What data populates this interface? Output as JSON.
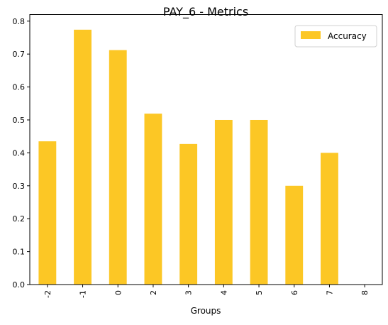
{
  "chart_data": {
    "type": "bar",
    "title": "PAY_6 - Metrics",
    "xlabel": "Groups",
    "ylabel": "",
    "categories": [
      "-2",
      "-1",
      "0",
      "2",
      "3",
      "4",
      "5",
      "6",
      "7",
      "8"
    ],
    "series": [
      {
        "name": "Accuracy",
        "values": [
          0.435,
          0.774,
          0.712,
          0.519,
          0.427,
          0.5,
          0.5,
          0.3,
          0.4,
          0.0
        ],
        "color": "#fcc725"
      }
    ],
    "ylim": [
      0,
      0.82
    ],
    "yticks": [
      "0.0",
      "0.1",
      "0.2",
      "0.3",
      "0.4",
      "0.5",
      "0.6",
      "0.7",
      "0.8"
    ],
    "grid": false,
    "legend_position": "top-right"
  }
}
